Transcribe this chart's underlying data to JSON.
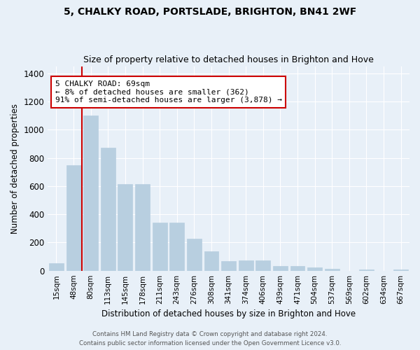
{
  "title1": "5, CHALKY ROAD, PORTSLADE, BRIGHTON, BN41 2WF",
  "title2": "Size of property relative to detached houses in Brighton and Hove",
  "xlabel": "Distribution of detached houses by size in Brighton and Hove",
  "ylabel": "Number of detached properties",
  "categories": [
    "15sqm",
    "48sqm",
    "80sqm",
    "113sqm",
    "145sqm",
    "178sqm",
    "211sqm",
    "243sqm",
    "276sqm",
    "308sqm",
    "341sqm",
    "374sqm",
    "406sqm",
    "439sqm",
    "471sqm",
    "504sqm",
    "537sqm",
    "569sqm",
    "602sqm",
    "634sqm",
    "667sqm"
  ],
  "values": [
    55,
    750,
    1100,
    870,
    615,
    615,
    340,
    340,
    225,
    135,
    68,
    73,
    73,
    35,
    35,
    22,
    12,
    0,
    10,
    0,
    10
  ],
  "bar_color": "#b8cfe0",
  "bar_edge_color": "#b8cfe0",
  "vline_color": "#cc0000",
  "annotation_text": "5 CHALKY ROAD: 69sqm\n← 8% of detached houses are smaller (362)\n91% of semi-detached houses are larger (3,878) →",
  "annotation_box_color": "#ffffff",
  "annotation_box_edge_color": "#cc0000",
  "ylim": [
    0,
    1450
  ],
  "yticks": [
    0,
    200,
    400,
    600,
    800,
    1000,
    1200,
    1400
  ],
  "footer1": "Contains HM Land Registry data © Crown copyright and database right 2024.",
  "footer2": "Contains public sector information licensed under the Open Government Licence v3.0.",
  "bg_color": "#e8f0f8",
  "plot_bg_color": "#e8f0f8"
}
